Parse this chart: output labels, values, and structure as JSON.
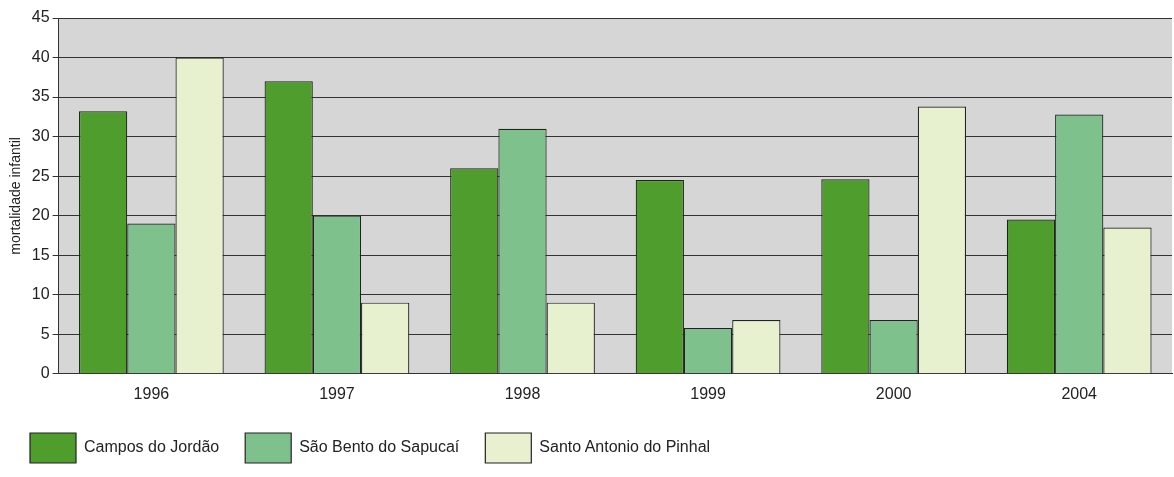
{
  "chart_data": {
    "type": "bar",
    "ylabel": "mortalidade infantil",
    "categories": [
      "1996",
      "1997",
      "1998",
      "1999",
      "2000",
      "2004"
    ],
    "series": [
      {
        "name": "Campos do Jordão",
        "color": "#4e9d2d",
        "values": [
          33.2,
          37,
          26,
          24.5,
          24.6,
          19.5
        ]
      },
      {
        "name": "São Bento do Sapucaí",
        "color": "#7fc18c",
        "values": [
          19,
          20,
          31,
          5.8,
          6.8,
          32.8
        ]
      },
      {
        "name": "Santo Antonio do Pinhal",
        "color": "#e8f1cf",
        "values": [
          40,
          9,
          9,
          6.8,
          33.8,
          18.5
        ]
      }
    ],
    "ylim": [
      0,
      45
    ],
    "yticks": [
      0,
      5,
      10,
      15,
      20,
      25,
      30,
      35,
      40,
      45
    ],
    "grid": "y",
    "legend": "bottom"
  }
}
